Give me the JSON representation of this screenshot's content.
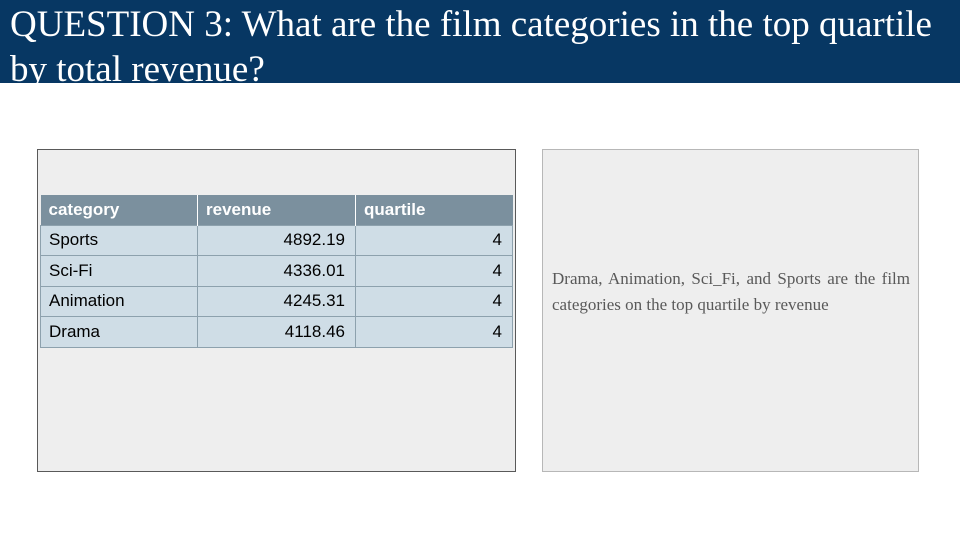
{
  "slide": {
    "title": "QUESTION 3: What are the film categories in the top quartile by total revenue?"
  },
  "table": {
    "headers": [
      "category",
      "revenue",
      "quartile"
    ],
    "rows": [
      [
        "Sports",
        "4892.19",
        "4"
      ],
      [
        "Sci-Fi",
        "4336.01",
        "4"
      ],
      [
        "Animation",
        "4245.31",
        "4"
      ],
      [
        "Drama",
        "4118.46",
        "4"
      ]
    ]
  },
  "note": {
    "text": "Drama, Animation, Sci_Fi, and Sports are the film categories on the top quartile by revenue"
  },
  "colors": {
    "title_bar": "#073763",
    "table_header": "#7b909e",
    "table_cell": "#cfdde6",
    "panel_background": "#eeeeee"
  }
}
